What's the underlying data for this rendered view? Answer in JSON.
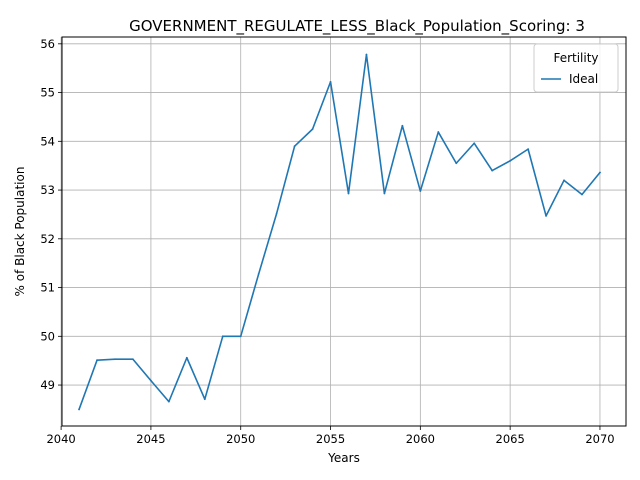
{
  "chart_data": {
    "type": "line",
    "title": "GOVERNMENT_REGULATE_LESS_Black_Population_Scoring: 3",
    "xlabel": "Years",
    "ylabel": "% of Black Population",
    "xlim": [
      2040.05,
      2071.45
    ],
    "ylim": [
      48.16,
      56.14
    ],
    "xticks": [
      2040,
      2045,
      2050,
      2055,
      2060,
      2065,
      2070
    ],
    "yticks": [
      49,
      50,
      51,
      52,
      53,
      54,
      55,
      56
    ],
    "grid": true,
    "legend": {
      "title": "Fertility",
      "placement": "top-right"
    },
    "series": [
      {
        "name": "Ideal",
        "color": "#1f77b4",
        "x": [
          2041,
          2042,
          2043,
          2044,
          2045,
          2046,
          2047,
          2048,
          2049,
          2050,
          2051,
          2052,
          2053,
          2054,
          2055,
          2056,
          2057,
          2058,
          2059,
          2060,
          2061,
          2062,
          2063,
          2064,
          2065,
          2066,
          2067,
          2068,
          2069,
          2070
        ],
        "values": [
          48.5,
          49.51,
          49.53,
          49.53,
          49.09,
          48.66,
          49.56,
          48.71,
          50.0,
          50.0,
          51.28,
          52.52,
          53.9,
          54.25,
          55.22,
          52.93,
          55.78,
          52.93,
          54.32,
          52.98,
          54.19,
          53.55,
          53.96,
          53.4,
          53.6,
          53.84,
          52.47,
          53.2,
          52.91,
          53.36
        ]
      }
    ]
  }
}
